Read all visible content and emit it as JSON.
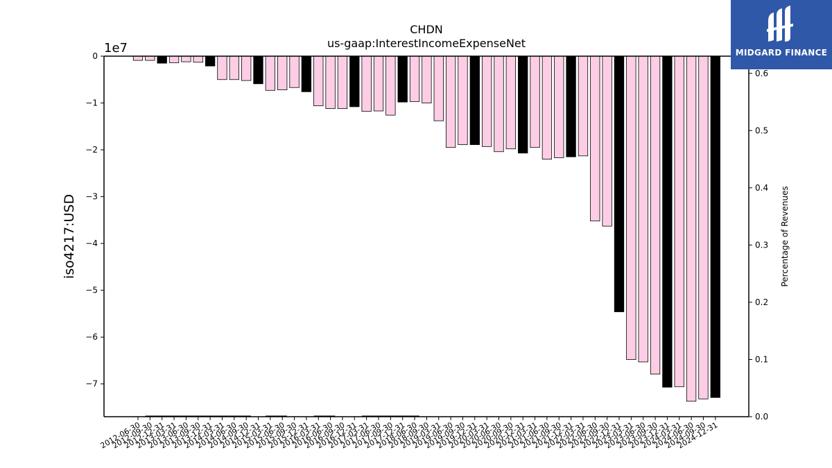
{
  "chart_data": {
    "type": "bar",
    "title": "CHDN",
    "subtitle": "us-gaap:InterestIncomeExpenseNet",
    "ylabel": "iso4217:USD",
    "y2label": "Percentage of Revenues",
    "y_offset_text": "1e7",
    "ylim": [
      -77000000,
      0
    ],
    "y2lim": [
      0.0,
      0.63
    ],
    "yticks": [
      0,
      -1,
      -2,
      -3,
      -4,
      -5,
      -6,
      -7
    ],
    "y2ticks": [
      "0.0",
      "0.1",
      "0.2",
      "0.3",
      "0.4",
      "0.5",
      "0.6"
    ],
    "categories": [
      "2012-06-30",
      "2012-09-30",
      "2012-12-31",
      "2013-03-31",
      "2013-06-30",
      "2013-09-30",
      "2013-12-31",
      "2014-03-31",
      "2014-06-30",
      "2014-09-30",
      "2014-12-31",
      "2015-03-31",
      "2015-06-30",
      "2015-09-30",
      "2015-12-31",
      "2016-03-31",
      "2016-06-30",
      "2016-09-30",
      "2016-12-31",
      "2017-03-31",
      "2017-06-30",
      "2017-09-30",
      "2017-12-31",
      "2018-06-30",
      "2018-09-30",
      "2019-03-31",
      "2019-06-30",
      "2019-09-30",
      "2019-12-31",
      "2020-03-31",
      "2020-06-30",
      "2020-09-30",
      "2020-12-31",
      "2021-03-31",
      "2021-06-30",
      "2021-09-30",
      "2021-12-31",
      "2022-03-31",
      "2022-06-30",
      "2022-09-30",
      "2022-12-31",
      "2023-03-31",
      "2023-06-30",
      "2023-09-30",
      "2023-12-31",
      "2024-03-31",
      "2024-06-30",
      "2024-09-30",
      "2024-12-31"
    ],
    "values": [
      -900000,
      -900000,
      -1500000,
      -1400000,
      -1200000,
      -1300000,
      -2100000,
      -5000000,
      -5000000,
      -5200000,
      -5900000,
      -7300000,
      -7200000,
      -6700000,
      -7600000,
      -10600000,
      -11200000,
      -11200000,
      -10800000,
      -11800000,
      -11700000,
      -12600000,
      -9800000,
      -9700000,
      -10000000,
      -13800000,
      -19500000,
      -18900000,
      -18900000,
      -19300000,
      -20400000,
      -19800000,
      -20700000,
      -19500000,
      -22000000,
      -21700000,
      -21500000,
      -21300000,
      -35200000,
      -36300000,
      -54600000,
      -64800000,
      -65300000,
      -67900000,
      -70700000,
      -70600000,
      -73700000,
      -73200000,
      -72900000
    ],
    "annual": [
      false,
      false,
      true,
      false,
      false,
      false,
      true,
      false,
      false,
      false,
      true,
      false,
      false,
      false,
      true,
      false,
      false,
      false,
      true,
      false,
      false,
      false,
      true,
      false,
      false,
      false,
      false,
      false,
      true,
      false,
      false,
      false,
      true,
      false,
      false,
      false,
      true,
      false,
      false,
      false,
      true,
      false,
      false,
      false,
      true,
      false,
      false,
      false,
      true
    ],
    "colors": {
      "quarterly": "#fccde5",
      "annual": "#000000",
      "edge": "#000000"
    },
    "secondary_segments": [
      {
        "from": "2012-09-30",
        "to": "2014-09-30",
        "value": 0.0
      },
      {
        "from": "2015-03-31",
        "to": "2015-06-30",
        "value": 0.0
      },
      {
        "from": "2016-03-31",
        "to": "2016-06-30",
        "value": 0.0
      },
      {
        "from": "2017-03-31",
        "to": "2018-06-30",
        "value": 0.0
      }
    ],
    "grid": false,
    "legend": "none"
  },
  "logo": {
    "text": "MIDGARD FINANCE",
    "color": "#2f58a8"
  }
}
